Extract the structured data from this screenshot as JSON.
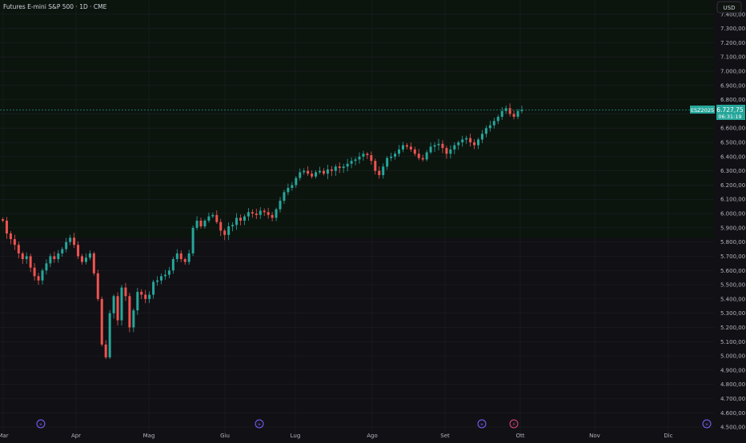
{
  "header": {
    "symbol_title": "Futures E-mini S&P 500 · 1D · CME",
    "currency": "USD"
  },
  "price_tag": {
    "ticker": "ESZ2025",
    "price": "6.727,75",
    "countdown": "06:31:19"
  },
  "colors": {
    "up": "#26a69a",
    "down": "#ef5350",
    "bg": "#111014",
    "upper_zone": "#0c140e",
    "axis_text": "#b2b5be",
    "event_marker": "#7b61ff",
    "earnings_marker": "#e0457b"
  },
  "icons": {
    "event_marker": "forward-arrows-icon",
    "earnings_marker": "lightning-icon"
  },
  "chart_data": {
    "type": "candlestick",
    "title": "Futures E-mini S&P 500 · 1D · CME",
    "xlabel": "",
    "ylabel": "",
    "ylim": [
      4450,
      7500
    ],
    "y_ticks": [
      "7.400,00",
      "7.300,00",
      "7.200,00",
      "7.100,00",
      "7.000,00",
      "6.900,00",
      "6.800,00",
      "6.700,00",
      "6.600,00",
      "6.500,00",
      "6.400,00",
      "6.300,00",
      "6.200,00",
      "6.100,00",
      "6.000,00",
      "5.900,00",
      "5.800,00",
      "5.700,00",
      "5.600,00",
      "5.500,00",
      "5.400,00",
      "5.300,00",
      "5.200,00",
      "5.100,00",
      "5.000,00",
      "4.900,00",
      "4.800,00",
      "4.700,00",
      "4.600,00",
      "4.500,00"
    ],
    "x_ticks": [
      "Mar",
      "Apr",
      "Mag",
      "Giu",
      "Lug",
      "Ago",
      "Set",
      "Ott",
      "Nov",
      "Dic"
    ],
    "last_price": 6727.75,
    "close_series": [
      5950,
      5860,
      5820,
      5780,
      5720,
      5680,
      5700,
      5620,
      5560,
      5530,
      5600,
      5650,
      5700,
      5680,
      5720,
      5750,
      5800,
      5830,
      5780,
      5700,
      5660,
      5690,
      5720,
      5580,
      5400,
      5080,
      4990,
      5300,
      5420,
      5250,
      5480,
      5420,
      5200,
      5320,
      5450,
      5430,
      5400,
      5430,
      5520,
      5530,
      5560,
      5570,
      5600,
      5680,
      5720,
      5680,
      5660,
      5720,
      5900,
      5950,
      5910,
      5950,
      5980,
      5990,
      5940,
      5880,
      5850,
      5910,
      5920,
      5970,
      5950,
      5980,
      6010,
      6000,
      5990,
      6020,
      6010,
      5990,
      5970,
      6030,
      6090,
      6150,
      6180,
      6200,
      6250,
      6290,
      6300,
      6280,
      6260,
      6290,
      6300,
      6280,
      6310,
      6300,
      6330,
      6320,
      6330,
      6350,
      6370,
      6380,
      6400,
      6420,
      6410,
      6370,
      6300,
      6270,
      6330,
      6390,
      6400,
      6420,
      6450,
      6480,
      6470,
      6450,
      6420,
      6390,
      6380,
      6430,
      6470,
      6480,
      6490,
      6460,
      6420,
      6450,
      6480,
      6500,
      6520,
      6530,
      6500,
      6480,
      6520,
      6560,
      6600,
      6620,
      6650,
      6680,
      6720,
      6740,
      6700,
      6680,
      6720,
      6728
    ],
    "events": [
      {
        "type": "event",
        "label": ">>"
      },
      {
        "type": "event",
        "label": ">>"
      },
      {
        "type": "event",
        "label": ">>"
      },
      {
        "type": "earnings",
        "label": "E"
      },
      {
        "type": "event",
        "label": ">>"
      }
    ]
  }
}
